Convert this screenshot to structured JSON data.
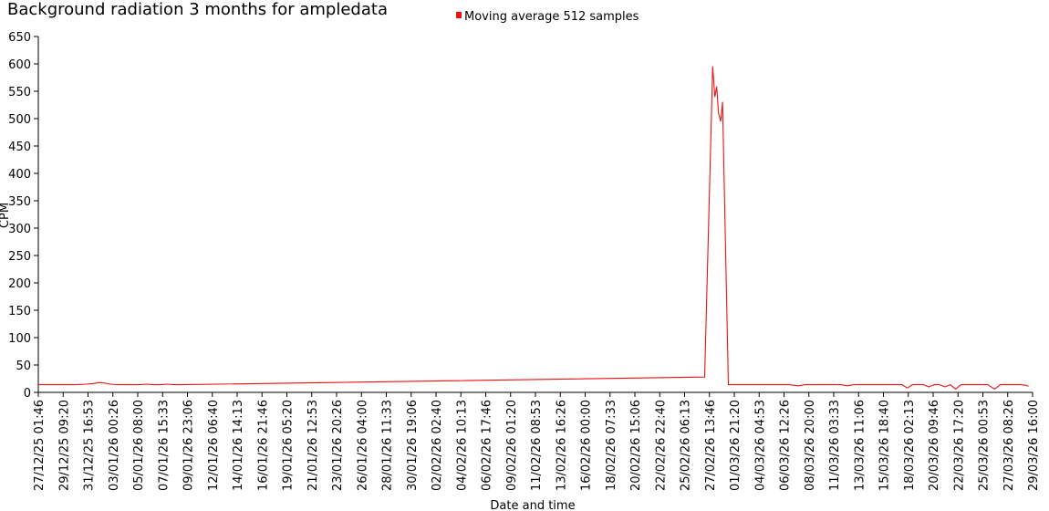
{
  "chart_data": {
    "type": "line",
    "title": "Background radiation 3 months for ampledata",
    "xlabel": "Date and time",
    "ylabel": "CPM",
    "ylim": [
      0,
      650
    ],
    "yticks": [
      0,
      50,
      100,
      150,
      200,
      250,
      300,
      350,
      400,
      450,
      500,
      550,
      600,
      650
    ],
    "xlim": [
      "2025-12-27T01:46",
      "2026-03-29T16:00"
    ],
    "xtick_labels": [
      "27/12/25 01:46",
      "29/12/25 09:20",
      "31/12/25 16:53",
      "03/01/26 00:26",
      "05/01/26 08:00",
      "07/01/26 15:33",
      "09/01/26 23:06",
      "12/01/26 06:40",
      "14/01/26 14:13",
      "16/01/26 21:46",
      "19/01/26 05:20",
      "21/01/26 12:53",
      "23/01/26 20:26",
      "26/01/26 04:00",
      "28/01/26 11:33",
      "30/01/26 19:06",
      "02/02/26 02:40",
      "04/02/26 10:13",
      "06/02/26 17:46",
      "09/02/26 01:20",
      "11/02/26 08:53",
      "13/02/26 16:26",
      "16/02/26 00:00",
      "18/02/26 07:33",
      "20/02/26 15:06",
      "22/02/26 22:40",
      "25/02/26 06:13",
      "27/02/26 13:46",
      "01/03/26 21:20",
      "04/03/26 04:53",
      "06/03/26 12:26",
      "08/03/26 20:00",
      "11/03/26 03:33",
      "13/03/26 11:06",
      "15/03/26 18:40",
      "18/03/26 02:13",
      "20/03/26 09:46",
      "22/03/26 17:20",
      "25/03/26 00:53",
      "27/03/26 08:26",
      "29/03/26 16:00"
    ],
    "grid": false,
    "legend_position": "top",
    "series": [
      {
        "name": "Moving average 512 samples",
        "color": "#ee1111",
        "points": [
          [
            "2025-12-27T01:46",
            14
          ],
          [
            "2025-12-28T05:00",
            14
          ],
          [
            "2025-12-29T09:00",
            14
          ],
          [
            "2025-12-30T13:00",
            14
          ],
          [
            "2025-12-31T12:00",
            15
          ],
          [
            "2026-01-01T04:00",
            16
          ],
          [
            "2026-01-01T18:00",
            18
          ],
          [
            "2026-01-02T06:00",
            17
          ],
          [
            "2026-01-02T18:00",
            15
          ],
          [
            "2026-01-03T12:00",
            14
          ],
          [
            "2026-01-04T12:00",
            14
          ],
          [
            "2026-01-05T12:00",
            14
          ],
          [
            "2026-01-06T06:00",
            15
          ],
          [
            "2026-01-06T18:00",
            14
          ],
          [
            "2026-01-07T12:00",
            14
          ],
          [
            "2026-01-08T00:00",
            15
          ],
          [
            "2026-01-08T16:00",
            14
          ],
          [
            "2026-01-09T07:00",
            14
          ],
          [
            "2026-02-27T03:00",
            28
          ],
          [
            "2026-02-27T21:00",
            595
          ],
          [
            "2026-02-28T02:00",
            540
          ],
          [
            "2026-02-28T06:00",
            558
          ],
          [
            "2026-02-28T10:00",
            510
          ],
          [
            "2026-02-28T15:00",
            495
          ],
          [
            "2026-02-28T19:00",
            530
          ],
          [
            "2026-03-01T08:00",
            14
          ],
          [
            "2026-03-02T12:00",
            14
          ],
          [
            "2026-03-04T00:00",
            14
          ],
          [
            "2026-03-05T12:00",
            14
          ],
          [
            "2026-03-07T00:00",
            14
          ],
          [
            "2026-03-07T20:00",
            12
          ],
          [
            "2026-03-08T12:00",
            14
          ],
          [
            "2026-03-10T00:00",
            14
          ],
          [
            "2026-03-11T20:00",
            14
          ],
          [
            "2026-03-12T10:00",
            12
          ],
          [
            "2026-03-13T00:00",
            14
          ],
          [
            "2026-03-14T12:00",
            14
          ],
          [
            "2026-03-16T00:00",
            14
          ],
          [
            "2026-03-17T12:00",
            14
          ],
          [
            "2026-03-18T00:00",
            8
          ],
          [
            "2026-03-18T12:00",
            14
          ],
          [
            "2026-03-19T12:00",
            14
          ],
          [
            "2026-03-20T00:00",
            10
          ],
          [
            "2026-03-20T12:00",
            14
          ],
          [
            "2026-03-21T00:00",
            14
          ],
          [
            "2026-03-21T12:00",
            10
          ],
          [
            "2026-03-22T00:00",
            14
          ],
          [
            "2026-03-22T12:00",
            6
          ],
          [
            "2026-03-23T00:00",
            14
          ],
          [
            "2026-03-24T12:00",
            14
          ],
          [
            "2026-03-25T12:00",
            14
          ],
          [
            "2026-03-26T03:00",
            6
          ],
          [
            "2026-03-26T16:00",
            14
          ],
          [
            "2026-03-27T12:00",
            14
          ],
          [
            "2026-03-28T12:00",
            14
          ],
          [
            "2026-03-29T01:00",
            13
          ],
          [
            "2026-03-29T07:00",
            11
          ]
        ]
      }
    ]
  }
}
